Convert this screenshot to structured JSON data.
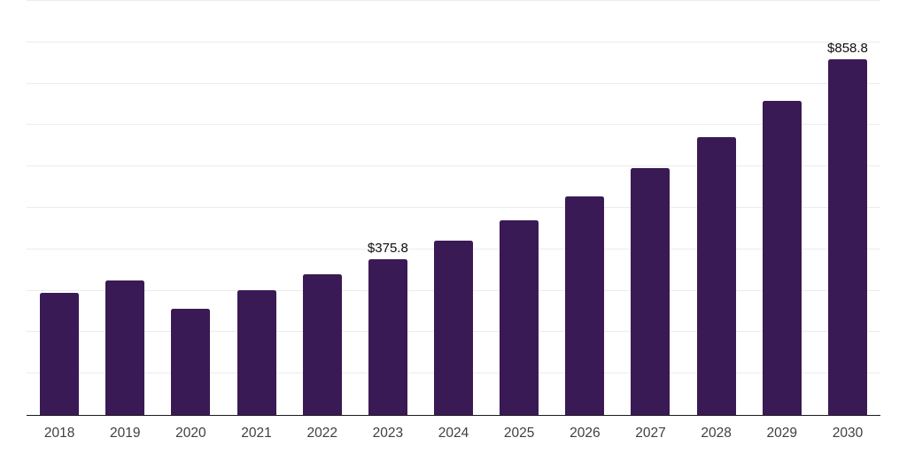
{
  "chart_data": {
    "type": "bar",
    "title": "",
    "xlabel": "",
    "ylabel": "",
    "categories": [
      "2018",
      "2019",
      "2020",
      "2021",
      "2022",
      "2023",
      "2024",
      "2025",
      "2026",
      "2027",
      "2028",
      "2029",
      "2030"
    ],
    "values": [
      295,
      325,
      256,
      301,
      339,
      375.8,
      421,
      470,
      528,
      596,
      671,
      758,
      858.8
    ],
    "data_labels": [
      null,
      null,
      null,
      null,
      null,
      "$375.8",
      null,
      null,
      null,
      null,
      null,
      null,
      "$858.8"
    ],
    "ylim": [
      0,
      1000
    ],
    "gridline_step": 100,
    "grid": "horizontal",
    "legend": "none",
    "y_axis_labels_visible": false,
    "colors": {
      "bar": "#3A1A55",
      "axis": "#1a1a1a",
      "gridline": "#ececec",
      "tick_label": "#404040",
      "value_label": "#0d0d0d",
      "background": "#ffffff"
    }
  }
}
